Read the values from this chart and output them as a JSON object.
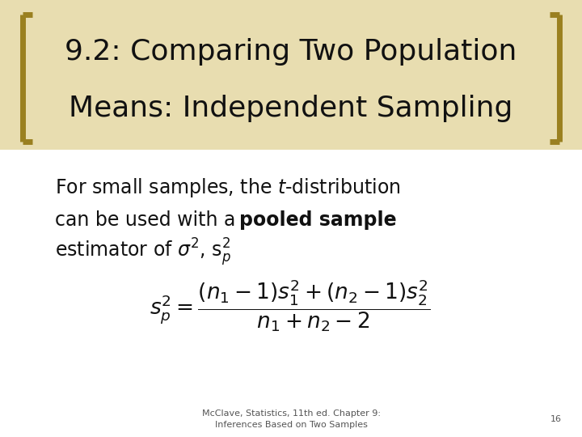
{
  "title_line1": "9.2: Comparing Two Population",
  "title_line2": "Means: Independent Sampling",
  "title_fontsize": 26,
  "title_color": "#111111",
  "title_bg_color": "#e8ddb0",
  "bracket_color": "#9a8020",
  "body_fontsize": 17,
  "formula_fontsize": 16,
  "footer_text": "McClave, Statistics, 11th ed. Chapter 9:\nInferences Based on Two Samples",
  "footer_page": "16",
  "footer_fontsize": 8,
  "bg_color": "#ffffff",
  "text_color": "#111111",
  "footer_color": "#555555"
}
